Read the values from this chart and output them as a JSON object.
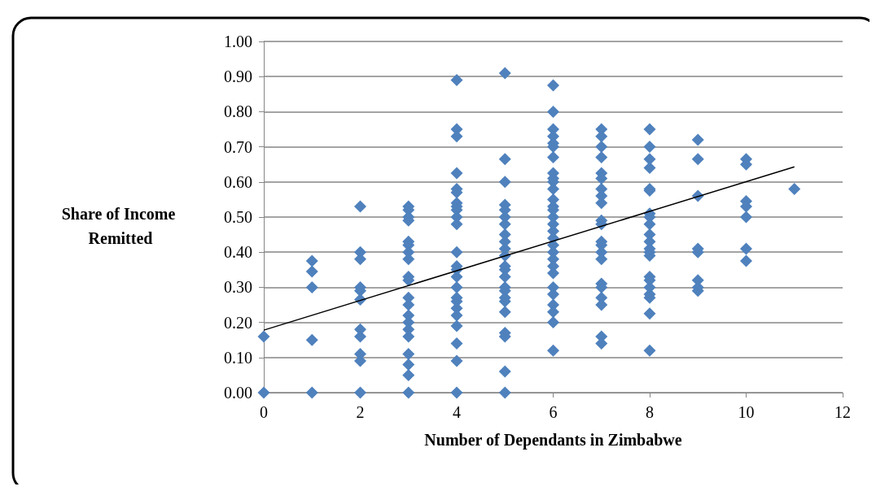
{
  "chart_data": {
    "type": "scatter",
    "xlabel": "Number of Dependants in Zimbabwe",
    "ylabel": "Share of Income Remitted",
    "xlim": [
      0,
      12
    ],
    "xticks": [
      0,
      2,
      4,
      6,
      8,
      10,
      12
    ],
    "ylim": [
      0,
      1
    ],
    "yticks": [
      {
        "value": 0,
        "label": "0.00"
      },
      {
        "value": 0.1,
        "label": "0.10"
      },
      {
        "value": 0.2,
        "label": "0.20"
      },
      {
        "value": 0.3,
        "label": "0.30"
      },
      {
        "value": 0.4,
        "label": "0.40"
      },
      {
        "value": 0.5,
        "label": "0.50"
      },
      {
        "value": 0.6,
        "label": "0.60"
      },
      {
        "value": 0.7,
        "label": "0.70"
      },
      {
        "value": 0.8,
        "label": "0.80"
      },
      {
        "value": 0.9,
        "label": "0.90"
      },
      {
        "value": 1,
        "label": "1.00"
      }
    ],
    "grid": "y",
    "marker": "diamond",
    "series": [
      {
        "color": "#4f81bd",
        "x": [
          0,
          0,
          1,
          1,
          1,
          1,
          1,
          2,
          2,
          2,
          2,
          2,
          2,
          2,
          2,
          2,
          2,
          2,
          3,
          3,
          3,
          3,
          3,
          3,
          3,
          3,
          3,
          3,
          3,
          3,
          3,
          3,
          3,
          3,
          3,
          3,
          3,
          3,
          4,
          4,
          4,
          4,
          4,
          4,
          4,
          4,
          4,
          4,
          4,
          4,
          4,
          4,
          4,
          4,
          4,
          4,
          4,
          4,
          4,
          4,
          4,
          4,
          5,
          5,
          5,
          5,
          5,
          5,
          5,
          5,
          5,
          5,
          5,
          5,
          5,
          5,
          5,
          5,
          5,
          5,
          5,
          5,
          5,
          5,
          5,
          6,
          6,
          6,
          6,
          6,
          6,
          6,
          6,
          6,
          6,
          6,
          6,
          6,
          6,
          6,
          6,
          6,
          6,
          6,
          6,
          6,
          6,
          6,
          6,
          6,
          6,
          6,
          6,
          6,
          7,
          7,
          7,
          7,
          7,
          7,
          7,
          7,
          7,
          7,
          7,
          7,
          7,
          7,
          7,
          7,
          7,
          7,
          7,
          7,
          7,
          8,
          8,
          8,
          8,
          8,
          8,
          8,
          8,
          8,
          8,
          8,
          8,
          8,
          8,
          8,
          8,
          8,
          8,
          8,
          8,
          8,
          9,
          9,
          9,
          9,
          9,
          9,
          9,
          9,
          10,
          10,
          10,
          10,
          10,
          10,
          10,
          11
        ],
        "values": [
          0.16,
          0,
          0.375,
          0.345,
          0.3,
          0.15,
          0,
          0.53,
          0.4,
          0.38,
          0.3,
          0.29,
          0.265,
          0.18,
          0.16,
          0.11,
          0.09,
          0,
          0.53,
          0.52,
          0.5,
          0.49,
          0.43,
          0.42,
          0.4,
          0.38,
          0.33,
          0.32,
          0.27,
          0.25,
          0.22,
          0.2,
          0.18,
          0.16,
          0.11,
          0.08,
          0.05,
          0,
          0.89,
          0.75,
          0.73,
          0.625,
          0.58,
          0.57,
          0.54,
          0.53,
          0.52,
          0.5,
          0.48,
          0.4,
          0.36,
          0.35,
          0.33,
          0.3,
          0.27,
          0.26,
          0.24,
          0.22,
          0.19,
          0.14,
          0.09,
          0,
          0.91,
          0.665,
          0.6,
          0.535,
          0.52,
          0.5,
          0.48,
          0.45,
          0.43,
          0.41,
          0.39,
          0.36,
          0.35,
          0.33,
          0.3,
          0.29,
          0.27,
          0.26,
          0.23,
          0.17,
          0.16,
          0.06,
          0,
          0.875,
          0.8,
          0.75,
          0.73,
          0.71,
          0.7,
          0.67,
          0.625,
          0.61,
          0.6,
          0.58,
          0.55,
          0.53,
          0.52,
          0.5,
          0.48,
          0.46,
          0.44,
          0.42,
          0.4,
          0.38,
          0.36,
          0.34,
          0.3,
          0.28,
          0.25,
          0.23,
          0.2,
          0.12,
          0.75,
          0.73,
          0.7,
          0.67,
          0.625,
          0.61,
          0.58,
          0.56,
          0.54,
          0.49,
          0.48,
          0.43,
          0.42,
          0.4,
          0.38,
          0.31,
          0.3,
          0.27,
          0.25,
          0.16,
          0.14,
          0.75,
          0.7,
          0.665,
          0.64,
          0.58,
          0.575,
          0.51,
          0.5,
          0.48,
          0.45,
          0.43,
          0.41,
          0.4,
          0.39,
          0.33,
          0.32,
          0.3,
          0.28,
          0.27,
          0.225,
          0.12,
          0.72,
          0.665,
          0.56,
          0.41,
          0.4,
          0.32,
          0.3,
          0.29,
          0.665,
          0.65,
          0.545,
          0.53,
          0.5,
          0.41,
          0.375,
          0.58
        ]
      },
      {
        "type": "line",
        "color": "#000000",
        "marker": "none",
        "x": [
          0,
          11
        ],
        "values": [
          0.178,
          0.643
        ]
      }
    ]
  }
}
